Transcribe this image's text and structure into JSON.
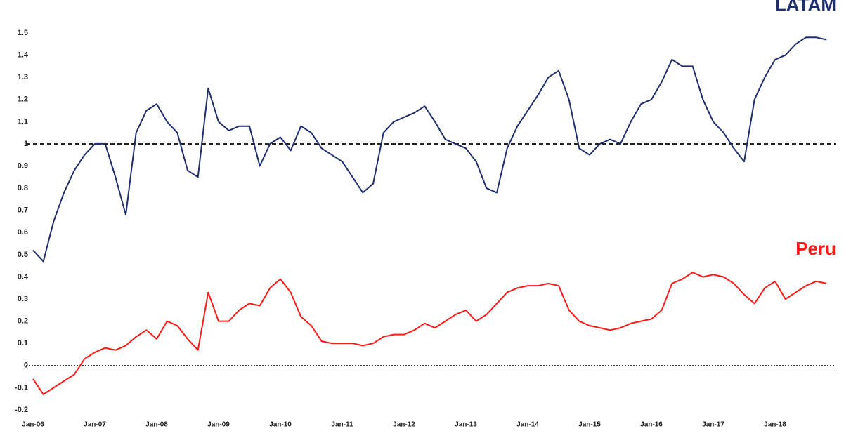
{
  "chart_data": {
    "type": "line",
    "categories": [
      "Jan-06",
      null,
      null,
      null,
      null,
      null,
      "Jan-07",
      null,
      null,
      null,
      null,
      null,
      "Jan-08",
      null,
      null,
      null,
      null,
      null,
      "Jan-09",
      null,
      null,
      null,
      null,
      null,
      "Jan-10",
      null,
      null,
      null,
      null,
      null,
      "Jan-11",
      null,
      null,
      null,
      null,
      null,
      "Jan-12",
      null,
      null,
      null,
      null,
      null,
      "Jan-13",
      null,
      null,
      null,
      null,
      null,
      "Jan-14",
      null,
      null,
      null,
      null,
      null,
      "Jan-15",
      null,
      null,
      null,
      null,
      null,
      "Jan-16",
      null,
      null,
      null,
      null,
      null,
      "Jan-17",
      null,
      null,
      null,
      null,
      null,
      "Jan-18",
      null,
      null,
      null,
      null,
      null
    ],
    "series": [
      {
        "name": "LATAM",
        "color": "#1f2f6e",
        "values": [
          0.52,
          0.47,
          0.65,
          0.78,
          0.88,
          0.95,
          1.0,
          1.0,
          0.85,
          0.68,
          1.05,
          1.15,
          1.18,
          1.1,
          1.05,
          0.88,
          0.85,
          1.25,
          1.1,
          1.06,
          1.08,
          1.08,
          0.9,
          1.0,
          1.03,
          0.97,
          1.08,
          1.05,
          0.98,
          0.95,
          0.92,
          0.85,
          0.78,
          0.82,
          1.05,
          1.1,
          1.12,
          1.14,
          1.17,
          1.1,
          1.02,
          1.0,
          0.98,
          0.92,
          0.8,
          0.78,
          0.98,
          1.08,
          1.15,
          1.22,
          1.3,
          1.33,
          1.2,
          0.98,
          0.95,
          1.0,
          1.02,
          1.0,
          1.1,
          1.18,
          1.2,
          1.28,
          1.38,
          1.35,
          1.35,
          1.2,
          1.1,
          1.05,
          0.98,
          0.92,
          1.2,
          1.3,
          1.38,
          1.4,
          1.45,
          1.48,
          1.48,
          1.47
        ]
      },
      {
        "name": "Peru",
        "color": "#ff1a1a",
        "values": [
          -0.06,
          -0.13,
          -0.1,
          -0.07,
          -0.04,
          0.03,
          0.06,
          0.08,
          0.07,
          0.09,
          0.13,
          0.16,
          0.12,
          0.2,
          0.18,
          0.12,
          0.07,
          0.33,
          0.2,
          0.2,
          0.25,
          0.28,
          0.27,
          0.35,
          0.39,
          0.33,
          0.22,
          0.18,
          0.11,
          0.1,
          0.1,
          0.1,
          0.09,
          0.1,
          0.13,
          0.14,
          0.14,
          0.16,
          0.19,
          0.17,
          0.2,
          0.23,
          0.25,
          0.2,
          0.23,
          0.28,
          0.33,
          0.35,
          0.36,
          0.36,
          0.37,
          0.36,
          0.25,
          0.2,
          0.18,
          0.17,
          0.16,
          0.17,
          0.19,
          0.2,
          0.21,
          0.25,
          0.37,
          0.39,
          0.42,
          0.4,
          0.41,
          0.4,
          0.37,
          0.32,
          0.28,
          0.35,
          0.38,
          0.3,
          0.33,
          0.36,
          0.38,
          0.37
        ]
      }
    ],
    "ylim": [
      -0.2,
      1.5
    ],
    "yticks": [
      1.5,
      1.4,
      1.3,
      1.2,
      1.1,
      1,
      0.9,
      0.8,
      0.7,
      0.6,
      0.5,
      0.4,
      0.3,
      0.2,
      0.1,
      0,
      -0.1,
      -0.2
    ],
    "hlines": [
      {
        "value": 1,
        "style": "dashed"
      },
      {
        "value": 0,
        "style": "dotted"
      }
    ],
    "grid": false
  }
}
